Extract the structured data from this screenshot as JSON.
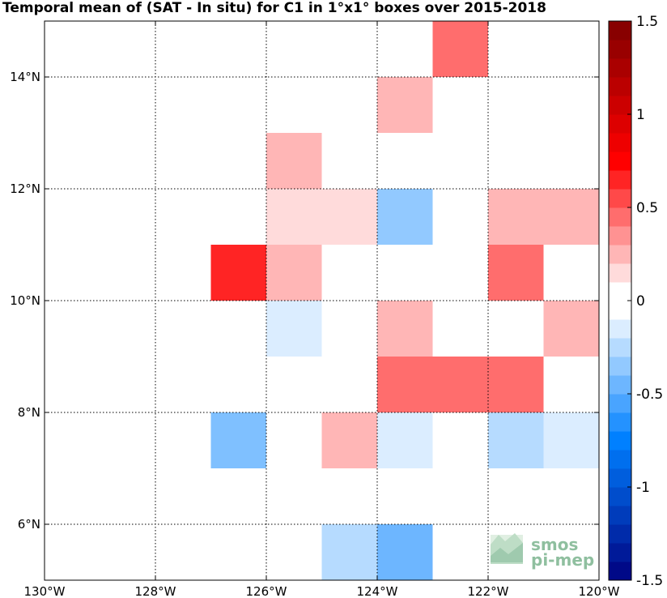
{
  "chart_data": {
    "type": "heatmap",
    "title": "Temporal mean of (SAT - In situ) for C1 in 1°x1° boxes over 2015-2018",
    "xlim": [
      -130,
      -120
    ],
    "ylim": [
      5,
      15
    ],
    "x_ticks": [
      {
        "value": -130,
        "label": "130°W"
      },
      {
        "value": -128,
        "label": "128°W"
      },
      {
        "value": -126,
        "label": "126°W"
      },
      {
        "value": -124,
        "label": "124°W"
      },
      {
        "value": -122,
        "label": "122°W"
      },
      {
        "value": -120,
        "label": "120°W"
      }
    ],
    "y_ticks": [
      {
        "value": 6,
        "label": "6°N"
      },
      {
        "value": 8,
        "label": "8°N"
      },
      {
        "value": 10,
        "label": "10°N"
      },
      {
        "value": 12,
        "label": "12°N"
      },
      {
        "value": 14,
        "label": "14°N"
      }
    ],
    "grid": true,
    "cell_size_deg": 1,
    "cells": [
      {
        "lon": -123,
        "lat": 14,
        "value": 0.45
      },
      {
        "lon": -124,
        "lat": 13,
        "value": 0.25
      },
      {
        "lon": -126,
        "lat": 12,
        "value": 0.25
      },
      {
        "lon": -126,
        "lat": 11,
        "value": 0.15
      },
      {
        "lon": -125,
        "lat": 11,
        "value": 0.15
      },
      {
        "lon": -124,
        "lat": 11,
        "value": -0.35
      },
      {
        "lon": -122,
        "lat": 11,
        "value": 0.25
      },
      {
        "lon": -121,
        "lat": 11,
        "value": 0.25
      },
      {
        "lon": -127,
        "lat": 10,
        "value": 0.65
      },
      {
        "lon": -126,
        "lat": 10,
        "value": 0.25
      },
      {
        "lon": -122,
        "lat": 10,
        "value": 0.45
      },
      {
        "lon": -126,
        "lat": 9,
        "value": -0.15
      },
      {
        "lon": -124,
        "lat": 9,
        "value": 0.25
      },
      {
        "lon": -121,
        "lat": 9,
        "value": 0.25
      },
      {
        "lon": -124,
        "lat": 8,
        "value": 0.45
      },
      {
        "lon": -123,
        "lat": 8,
        "value": 0.45
      },
      {
        "lon": -122,
        "lat": 8,
        "value": 0.45
      },
      {
        "lon": -127,
        "lat": 7,
        "value": -0.4
      },
      {
        "lon": -125,
        "lat": 7,
        "value": 0.25
      },
      {
        "lon": -124,
        "lat": 7,
        "value": -0.15
      },
      {
        "lon": -122,
        "lat": 7,
        "value": -0.25
      },
      {
        "lon": -121,
        "lat": 7,
        "value": -0.15
      },
      {
        "lon": -125,
        "lat": 5,
        "value": -0.25
      },
      {
        "lon": -124,
        "lat": 5,
        "value": -0.45
      }
    ],
    "colorbar": {
      "min": -1.5,
      "max": 1.5,
      "step": 0.1,
      "tick_values": [
        1.5,
        1,
        0.5,
        0,
        -0.5,
        -1,
        -1.5
      ],
      "tick_labels": [
        "1.5",
        "1",
        "0.5",
        "0",
        "-0.5",
        "-1",
        "-1.5"
      ],
      "neutral_band": [
        -0.05,
        0.05
      ],
      "colors": {
        "low": "#00007f",
        "mid_low": "#0080ff",
        "neutral": "#ffffff",
        "mid_high": "#ff0000",
        "high": "#7f0000"
      }
    }
  },
  "logo": {
    "line1": "smos",
    "line2": "pi-mep"
  }
}
